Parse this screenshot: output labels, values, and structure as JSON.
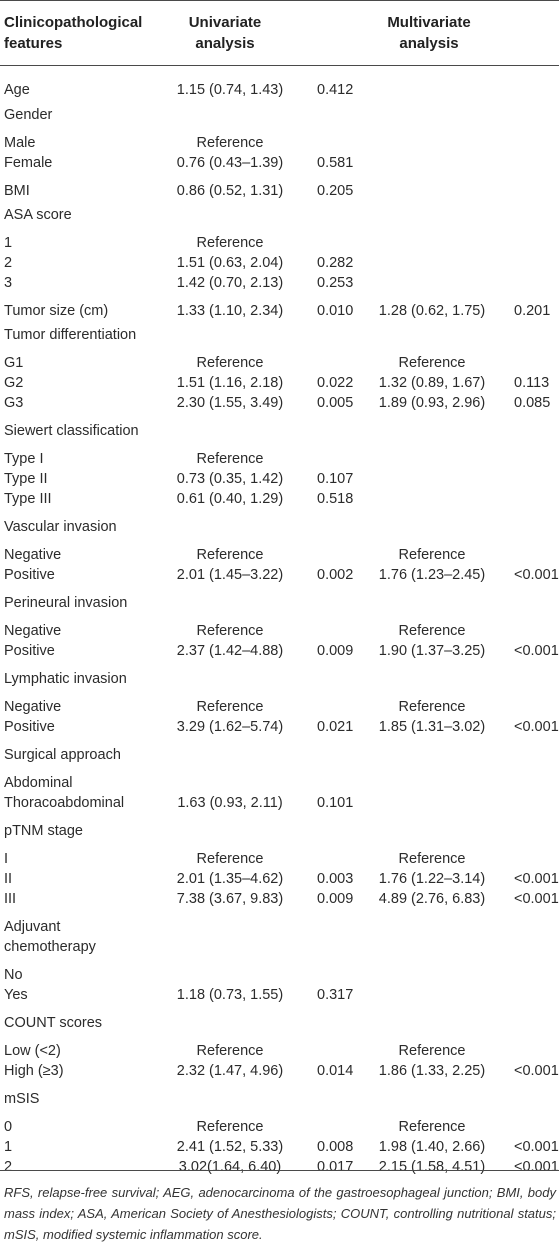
{
  "table": {
    "headers": {
      "features": "Clinicopathological features",
      "univariate": "Univariate analysis",
      "multivariate": "Multivariate analysis"
    },
    "rows": [
      {
        "label": "Age",
        "or1": "1.15 (0.74, 1.43)",
        "p1": "0.412",
        "or2": "",
        "p2": ""
      },
      {
        "label": "Gender",
        "or1": "",
        "p1": "",
        "or2": "",
        "p2": ""
      },
      {
        "label": "Male",
        "or1": "Reference",
        "p1": "",
        "or2": "",
        "p2": ""
      },
      {
        "label": "Female",
        "or1": "0.76 (0.43–1.39)",
        "p1": "0.581",
        "or2": "",
        "p2": ""
      },
      {
        "label": "BMI",
        "or1": "0.86 (0.52, 1.31)",
        "p1": "0.205",
        "or2": "",
        "p2": ""
      },
      {
        "label": "ASA score",
        "or1": "",
        "p1": "",
        "or2": "",
        "p2": ""
      },
      {
        "label": "1",
        "or1": "Reference",
        "p1": "",
        "or2": "",
        "p2": ""
      },
      {
        "label": "2",
        "or1": "1.51 (0.63, 2.04)",
        "p1": "0.282",
        "or2": "",
        "p2": ""
      },
      {
        "label": "3",
        "or1": "1.42 (0.70, 2.13)",
        "p1": "0.253",
        "or2": "",
        "p2": ""
      },
      {
        "label": "Tumor size (cm)",
        "or1": "1.33 (1.10, 2.34)",
        "p1": "0.010",
        "or2": "1.28 (0.62, 1.75)",
        "p2": "0.201"
      },
      {
        "label": "Tumor differentiation",
        "or1": "",
        "p1": "",
        "or2": "",
        "p2": ""
      },
      {
        "label": "G1",
        "or1": "Reference",
        "p1": "",
        "or2": "Reference",
        "p2": ""
      },
      {
        "label": "G2",
        "or1": "1.51 (1.16, 2.18)",
        "p1": "0.022",
        "or2": "1.32 (0.89, 1.67)",
        "p2": "0.113"
      },
      {
        "label": "G3",
        "or1": "2.30 (1.55, 3.49)",
        "p1": "0.005",
        "or2": "1.89 (0.93, 2.96)",
        "p2": "0.085"
      },
      {
        "label": "Siewert classification",
        "or1": "",
        "p1": "",
        "or2": "",
        "p2": ""
      },
      {
        "label": "Type I",
        "or1": "Reference",
        "p1": "",
        "or2": "",
        "p2": ""
      },
      {
        "label": "Type II",
        "or1": "0.73 (0.35, 1.42)",
        "p1": "0.107",
        "or2": "",
        "p2": ""
      },
      {
        "label": "Type III",
        "or1": "0.61 (0.40, 1.29)",
        "p1": "0.518",
        "or2": "",
        "p2": ""
      },
      {
        "label": "Vascular invasion",
        "or1": "",
        "p1": "",
        "or2": "",
        "p2": ""
      },
      {
        "label": "Negative",
        "or1": "Reference",
        "p1": "",
        "or2": "Reference",
        "p2": ""
      },
      {
        "label": "Positive",
        "or1": "2.01 (1.45–3.22)",
        "p1": "0.002",
        "or2": "1.76 (1.23–2.45)",
        "p2": "<0.001"
      },
      {
        "label": "Perineural invasion",
        "or1": "",
        "p1": "",
        "or2": "",
        "p2": ""
      },
      {
        "label": "Negative",
        "or1": "Reference",
        "p1": "",
        "or2": "Reference",
        "p2": ""
      },
      {
        "label": "Positive",
        "or1": "2.37 (1.42–4.88)",
        "p1": "0.009",
        "or2": "1.90 (1.37–3.25)",
        "p2": "<0.001"
      },
      {
        "label": "Lymphatic invasion",
        "or1": "",
        "p1": "",
        "or2": "",
        "p2": ""
      },
      {
        "label": "Negative",
        "or1": "Reference",
        "p1": "",
        "or2": "Reference",
        "p2": ""
      },
      {
        "label": "Positive",
        "or1": "3.29 (1.62–5.74)",
        "p1": "0.021",
        "or2": "1.85 (1.31–3.02)",
        "p2": "<0.001"
      },
      {
        "label": "Surgical approach",
        "or1": "",
        "p1": "",
        "or2": "",
        "p2": ""
      },
      {
        "label": "Abdominal",
        "or1": "",
        "p1": "",
        "or2": "",
        "p2": ""
      },
      {
        "label": "Thoracoabdominal",
        "or1": "1.63 (0.93, 2.11)",
        "p1": "0.101",
        "or2": "",
        "p2": ""
      },
      {
        "label": "pTNM stage",
        "or1": "",
        "p1": "",
        "or2": "",
        "p2": ""
      },
      {
        "label": "I",
        "or1": "Reference",
        "p1": "",
        "or2": "Reference",
        "p2": ""
      },
      {
        "label": "II",
        "or1": "2.01 (1.35–4.62)",
        "p1": "0.003",
        "or2": "1.76 (1.22–3.14)",
        "p2": "<0.001"
      },
      {
        "label": "III",
        "or1": "7.38 (3.67, 9.83)",
        "p1": "0.009",
        "or2": "4.89 (2.76, 6.83)",
        "p2": "<0.001"
      },
      {
        "label": "Adjuvant",
        "or1": "",
        "p1": "",
        "or2": "",
        "p2": ""
      },
      {
        "label": "chemotherapy",
        "or1": "",
        "p1": "",
        "or2": "",
        "p2": ""
      },
      {
        "label": "No",
        "or1": "",
        "p1": "",
        "or2": "",
        "p2": ""
      },
      {
        "label": "Yes",
        "or1": "1.18 (0.73, 1.55)",
        "p1": "0.317",
        "or2": "",
        "p2": ""
      },
      {
        "label": "COUNT scores",
        "or1": "",
        "p1": "",
        "or2": "",
        "p2": ""
      },
      {
        "label": "Low (<2)",
        "or1": "Reference",
        "p1": "",
        "or2": "Reference",
        "p2": ""
      },
      {
        "label": "High (≥3)",
        "or1": "2.32 (1.47, 4.96)",
        "p1": "0.014",
        "or2": "1.86 (1.33, 2.25)",
        "p2": "<0.001"
      },
      {
        "label": "mSIS",
        "or1": "",
        "p1": "",
        "or2": "",
        "p2": ""
      },
      {
        "label": "0",
        "or1": "Reference",
        "p1": "",
        "or2": "Reference",
        "p2": ""
      },
      {
        "label": "1",
        "or1": "2.41 (1.52, 5.33)",
        "p1": "0.008",
        "or2": "1.98 (1.40, 2.66)",
        "p2": "<0.001"
      },
      {
        "label": "2",
        "or1": "3.02(1.64, 6.40)",
        "p1": "0.017",
        "or2": "2.15 (1.58, 4.51)",
        "p2": "<0.001"
      }
    ]
  },
  "footnote": "RFS, relapse-free survival; AEG, adenocarcinoma of the gastroesophageal junction; BMI, body mass index; ASA, American Society of Anesthesiologists; COUNT, controlling nutritional status; mSIS, modified systemic inflammation score."
}
